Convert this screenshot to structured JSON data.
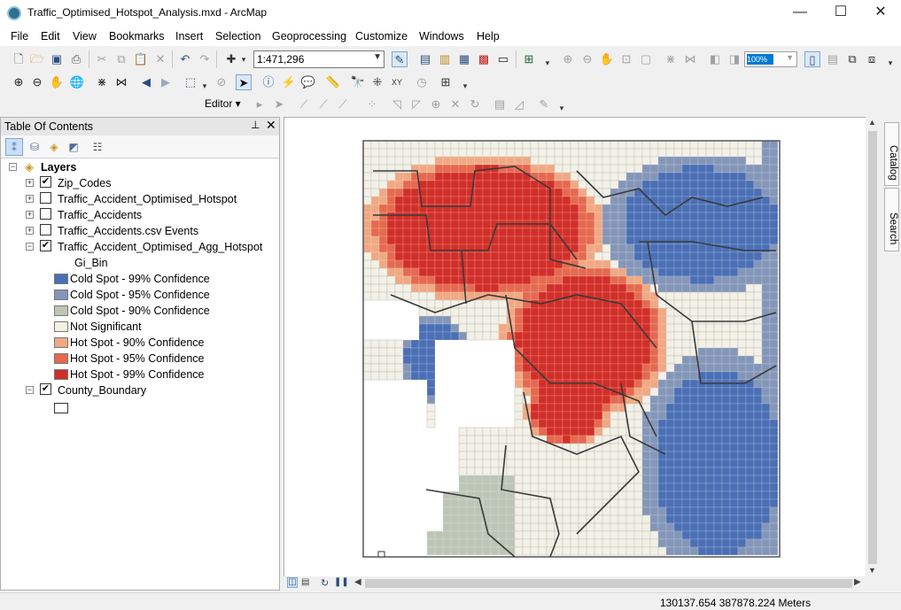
{
  "window": {
    "title": "Traffic_Optimised_Hotspot_Analysis.mxd - ArcMap",
    "minimize": "—",
    "maximize": "☐",
    "close": "✕"
  },
  "menu": [
    "File",
    "Edit",
    "View",
    "Bookmarks",
    "Insert",
    "Selection",
    "Geoprocessing",
    "Customize",
    "Windows",
    "Help"
  ],
  "toolbar": {
    "scale": "1:471,296",
    "zoom_percent": "100%",
    "editor_label": "Editor ▾"
  },
  "toc": {
    "title": "Table Of Contents",
    "pin": "⊥",
    "close": "✕",
    "root": "Layers",
    "layers": [
      {
        "name": "Zip_Codes",
        "checked": true,
        "expanded": false
      },
      {
        "name": "Traffic_Accident_Optimised_Hotspot",
        "checked": false,
        "expanded": false
      },
      {
        "name": "Traffic_Accidents",
        "checked": false,
        "expanded": false
      },
      {
        "name": "Traffic_Accidents.csv Events",
        "checked": false,
        "expanded": false
      },
      {
        "name": "Traffic_Accident_Optimised_Agg_Hotspot",
        "checked": true,
        "expanded": true
      }
    ],
    "legend_field": "Gi_Bin",
    "legend": [
      {
        "label": "Cold Spot - 99% Confidence",
        "color": "#4a6fb5"
      },
      {
        "label": "Cold Spot - 95% Confidence",
        "color": "#8496b8"
      },
      {
        "label": "Cold Spot - 90% Confidence",
        "color": "#bdc6b6"
      },
      {
        "label": "Not Significant",
        "color": "#f3f1e6"
      },
      {
        "label": "Hot Spot - 90% Confidence",
        "color": "#f0a883"
      },
      {
        "label": "Hot Spot - 95% Confidence",
        "color": "#e5694f"
      },
      {
        "label": "Hot Spot - 99% Confidence",
        "color": "#d22e28"
      }
    ],
    "last_layer": {
      "name": "County_Boundary",
      "checked": true,
      "expanded": true
    }
  },
  "side_tabs": [
    "Catalog",
    "Search"
  ],
  "status": {
    "coords": "130137.654  387878.224 Meters"
  }
}
